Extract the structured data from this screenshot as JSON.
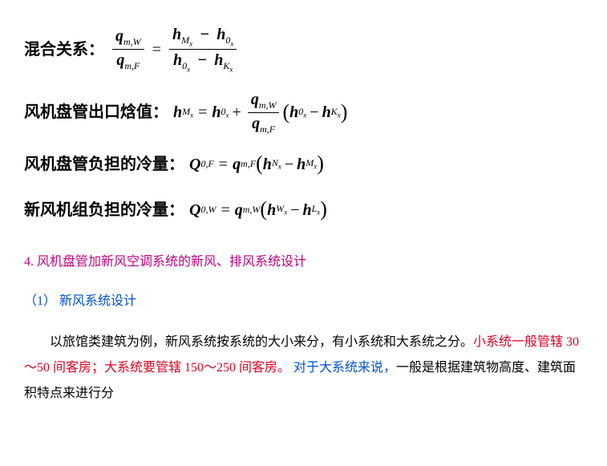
{
  "formulas": {
    "r1_label": "混合关系：",
    "r2_label": "风机盘管出口焓值：",
    "r3_label": "风机盘管负担的冷量：",
    "r4_label": "新风机组负担的冷量："
  },
  "vars": {
    "q": "q",
    "h": "h",
    "Q": "Q",
    "mW": "m,W",
    "mF": "m,F",
    "M": "M",
    "zero": "0",
    "K": "K",
    "N": "N",
    "W": "W",
    "L": "L",
    "x": "x",
    "zeroF": "0,F",
    "zeroW": "0,W"
  },
  "section": {
    "title": "4. 风机盘管加新风空调系统的新风、排风系统设计",
    "sub1": "（1） 新风系统设计"
  },
  "body": {
    "p1a": "以旅馆类建筑为例，新风系统按系统的大小来分，有小系统和大系统之分。",
    "p1_red": "小系统一般管辖 30～50 间客房；大系统要管辖 150～250 间客房。",
    "p1_blue": " 对于大系统来说，",
    "p1b": "一般是根据建筑物高度、建筑面积特点来进行分"
  }
}
